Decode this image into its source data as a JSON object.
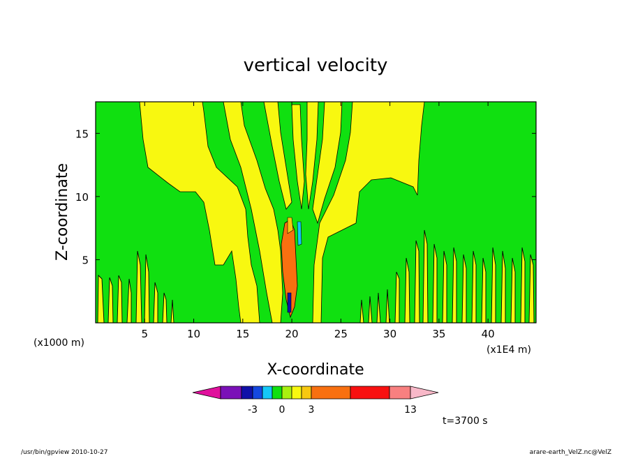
{
  "chart_data": {
    "type": "heatmap",
    "title": "vertical velocity",
    "xlabel": "X-coordinate",
    "ylabel": "Z-coordinate",
    "x_unit": "(x1E4 m)",
    "y_unit": "(x1000 m)",
    "x_ticks": [
      "5",
      "10",
      "15",
      "20",
      "25",
      "30",
      "35",
      "40"
    ],
    "x_tick_values": [
      5,
      10,
      15,
      20,
      25,
      30,
      35,
      40
    ],
    "y_ticks": [
      "5",
      "10",
      "15"
    ],
    "y_tick_values": [
      5,
      10,
      15
    ],
    "xlim": [
      0,
      44.9
    ],
    "ylim": [
      0,
      17.5
    ],
    "grid": false,
    "colorbar": {
      "colors": [
        "#e0109c",
        "#7b10b8",
        "#1010a8",
        "#1448e0",
        "#14c8f8",
        "#10e010",
        "#a8f010",
        "#f8f810",
        "#f8c810",
        "#f87010",
        "#f81010",
        "#f88080",
        "#f8b8c8"
      ],
      "labels": [
        "-3",
        "0",
        "3",
        "13"
      ],
      "label_levels": [
        -3,
        0,
        3,
        13
      ]
    },
    "time_label": "t=3700 s",
    "footer_left": "/usr/bin/gpview   2010-10-27",
    "footer_right": "arare-earth_VelZ.nc@VelZ"
  }
}
